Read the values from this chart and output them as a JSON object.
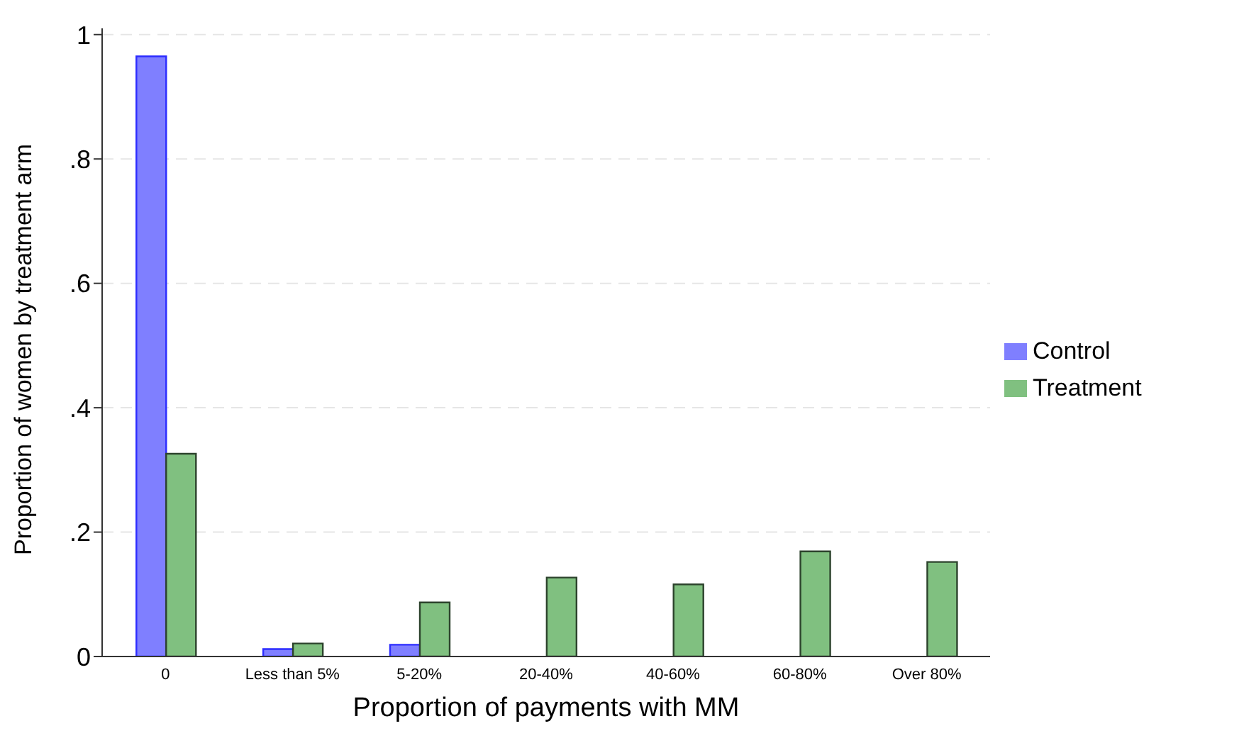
{
  "chart_data": {
    "type": "bar",
    "xlabel": "Proportion of payments with MM",
    "ylabel": "Proportion of women by treatment arm",
    "categories": [
      "0",
      "Less than 5%",
      "5-20%",
      "20-40%",
      "40-60%",
      "60-80%",
      "Over 80%"
    ],
    "series": [
      {
        "name": "Control",
        "color": "#7f7fff",
        "values": [
          0.965,
          0.012,
          0.019,
          0,
          0,
          0,
          0
        ]
      },
      {
        "name": "Treatment",
        "color": "#80c080",
        "values": [
          0.326,
          0.021,
          0.087,
          0.127,
          0.116,
          0.169,
          0.152
        ]
      }
    ],
    "ylim": [
      0,
      1.01
    ],
    "yticks": [
      0,
      {
        "value": 0.2,
        "label": ".2"
      },
      {
        "value": 0.4,
        "label": ".4"
      },
      {
        "value": 0.6,
        "label": ".6"
      },
      {
        "value": 0.8,
        "label": ".8"
      },
      1
    ],
    "grid": "y",
    "legend": "right"
  }
}
